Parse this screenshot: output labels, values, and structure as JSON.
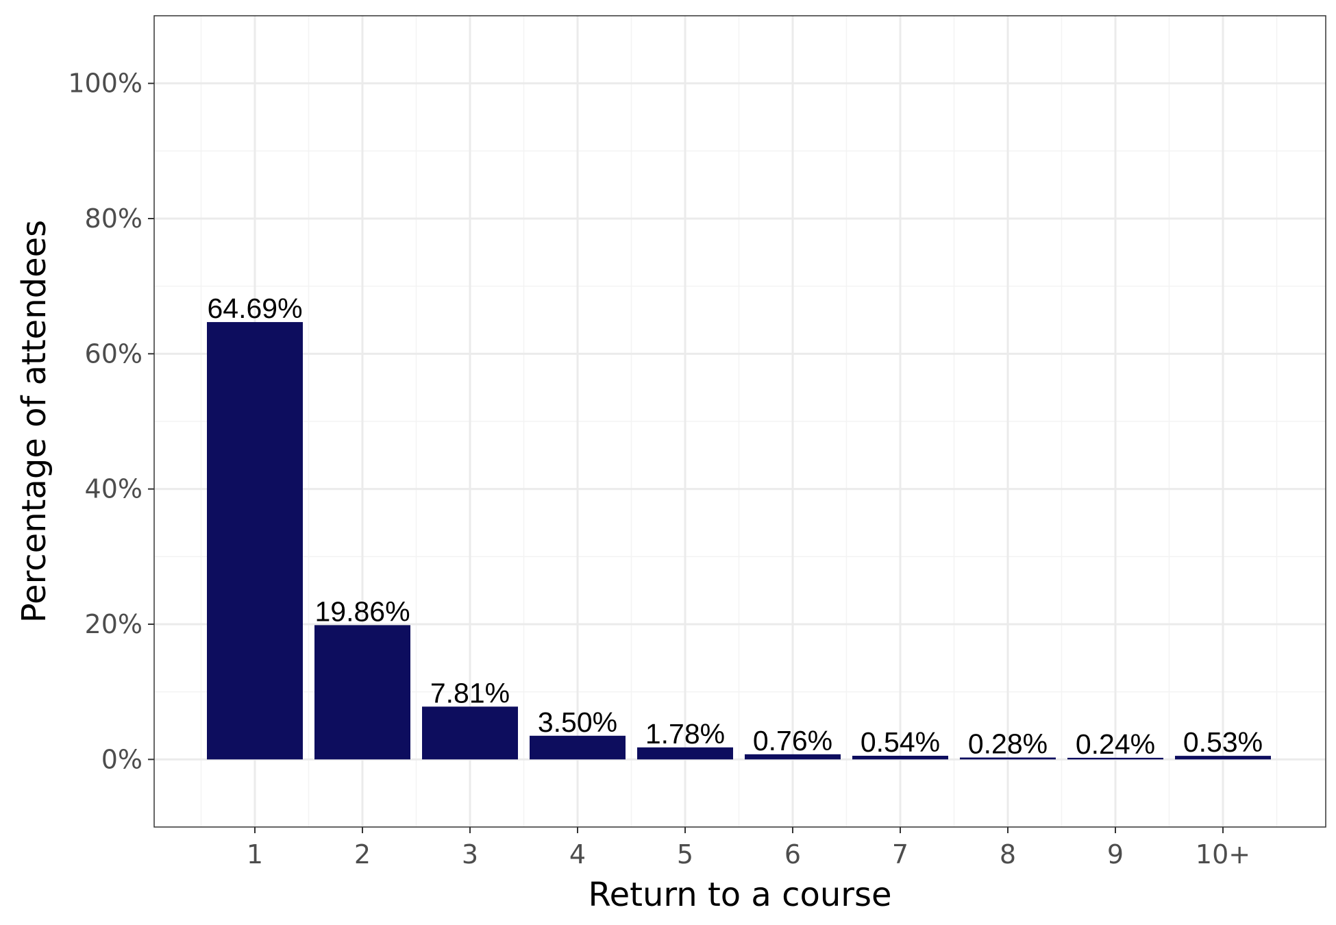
{
  "chart_data": {
    "type": "bar",
    "title": "",
    "xlabel": "Return to a course",
    "ylabel": "Percentage of attendees",
    "categories": [
      "1",
      "2",
      "3",
      "4",
      "5",
      "6",
      "7",
      "8",
      "9",
      "10+"
    ],
    "values": [
      64.69,
      19.86,
      7.81,
      3.5,
      1.78,
      0.76,
      0.54,
      0.28,
      0.24,
      0.53
    ],
    "value_labels": [
      "64.69%",
      "19.86%",
      "7.81%",
      "3.50%",
      "1.78%",
      "0.76%",
      "0.54%",
      "0.28%",
      "0.24%",
      "0.53%"
    ],
    "ylim": [
      -10,
      110
    ],
    "y_ticks": [
      0,
      20,
      40,
      60,
      80,
      100
    ],
    "y_tick_labels": [
      "0%",
      "20%",
      "40%",
      "60%",
      "80%",
      "100%"
    ],
    "grid": true,
    "legend": "none",
    "colors": {
      "bar": "#0d0d5e",
      "grid_major": "#ebebeb",
      "grid_minor": "#f3f3f3",
      "panel_border": "#333333",
      "tick_text": "#4d4d4d"
    }
  }
}
